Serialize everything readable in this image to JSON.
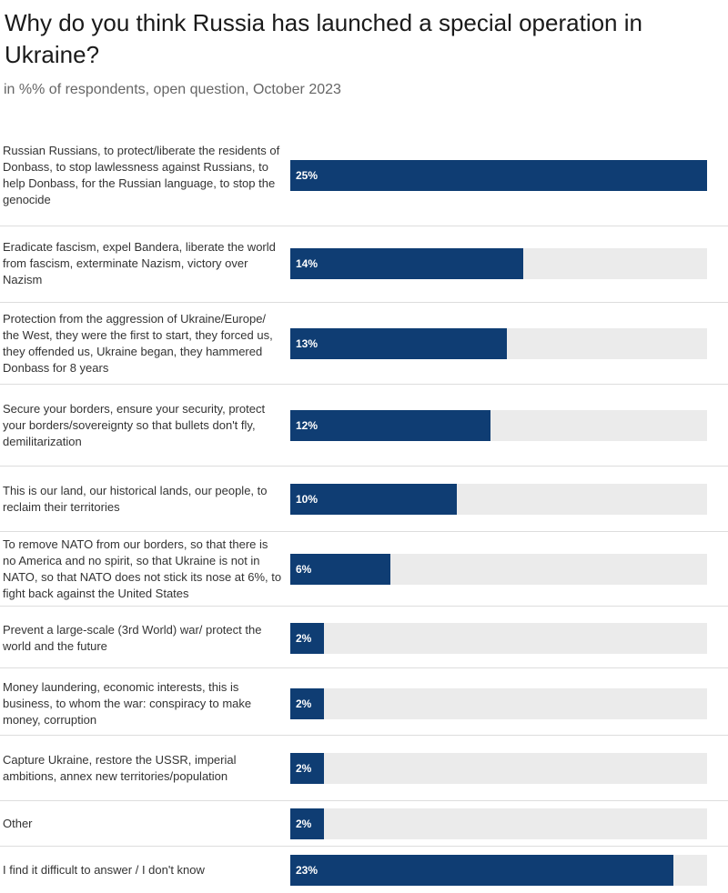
{
  "chart_data": {
    "type": "bar",
    "orientation": "horizontal",
    "title": "Why do you think Russia has launched a special operation in Ukraine?",
    "subtitle": "in %% of respondents, open question, October 2023",
    "unit": "%",
    "xlim": [
      0,
      25
    ],
    "colors": {
      "bar": "#0f3d73",
      "track": "#ebebeb",
      "value_text": "#ffffff"
    },
    "categories": [
      "Russian Russians, to protect/liberate the residents of Donbass, to stop lawlessness against Russians, to help Donbass, for the Russian language, to stop the genocide",
      "Eradicate fascism, expel Bandera, liberate the world from fascism, exterminate Nazism, victory over Nazism",
      "Protection from the aggression of Ukraine/Europe/ the West, they were the first to start, they forced us, they offended us, Ukraine began, they hammered Donbass for 8 years",
      "Secure your borders, ensure your security, protect your borders/sovereignty so that bullets don't fly, demilitarization",
      "This is our land, our historical lands, our people, to reclaim their territories",
      "To remove NATO from our borders, so that there is no America and no spirit, so that Ukraine is not in NATO, so that NATO does not stick its nose at 6%, to fight back against the United States",
      "Prevent a large-scale (3rd World) war/ protect the world and the future",
      "Money laundering, economic interests, this is business, to whom the war: conspiracy to make money, corruption",
      "Capture Ukraine, restore the USSR, imperial ambitions, annex new territories/population",
      "Other",
      "I find it difficult to answer / I don't know"
    ],
    "values": [
      25,
      14,
      13,
      12,
      10,
      6,
      2,
      2,
      2,
      2,
      23
    ],
    "value_labels": [
      "25%",
      "14%",
      "13%",
      "12%",
      "10%",
      "6%",
      "2%",
      "2%",
      "2%",
      "2%",
      "23%"
    ]
  }
}
